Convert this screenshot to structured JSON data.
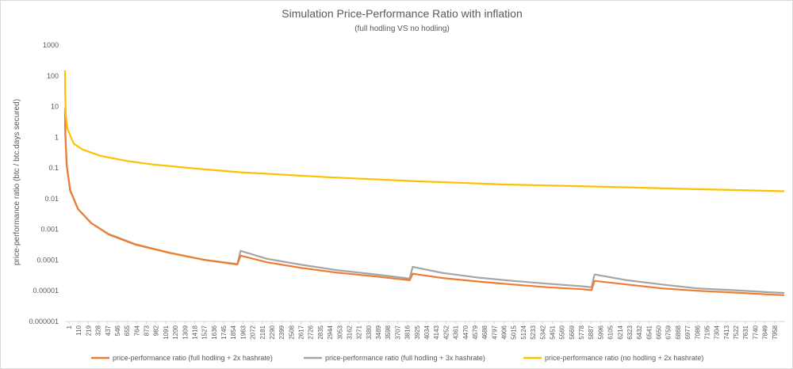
{
  "chart_data": {
    "type": "line",
    "title": "Simulation Price-Performance Ratio with inflation",
    "subtitle": "(full hodling VS no hodling)",
    "xlabel": "",
    "ylabel": "price-performance ratio (btc / btc.days secured)",
    "y_scale": "log",
    "ylim": [
      1e-06,
      1000
    ],
    "y_ticks": [
      "0.000001",
      "0.00001",
      "0.0001",
      "0.001",
      "0.01",
      "0.1",
      "1",
      "10",
      "100",
      "1000"
    ],
    "xlim": [
      1,
      8200
    ],
    "x_tick_labels": [
      "1",
      "110",
      "219",
      "328",
      "437",
      "546",
      "655",
      "764",
      "873",
      "982",
      "1091",
      "1200",
      "1309",
      "1418",
      "1527",
      "1636",
      "1745",
      "1854",
      "1963",
      "2072",
      "2181",
      "2290",
      "2399",
      "2508",
      "2617",
      "2726",
      "2835",
      "2944",
      "3053",
      "3162",
      "3271",
      "3380",
      "3489",
      "3598",
      "3707",
      "3816",
      "3925",
      "4034",
      "4143",
      "4252",
      "4361",
      "4470",
      "4579",
      "4688",
      "4797",
      "4906",
      "5015",
      "5124",
      "5233",
      "5342",
      "5451",
      "5560",
      "5669",
      "5778",
      "5887",
      "5996",
      "6105",
      "6214",
      "6323",
      "6432",
      "6541",
      "6650",
      "6759",
      "6868",
      "6977",
      "7086",
      "7195",
      "7304",
      "7413",
      "7522",
      "7631",
      "7740",
      "7849",
      "7958"
    ],
    "series": [
      {
        "name": "price-performance ratio (full hodling + 2x hashrate)",
        "color": "#ED7D31",
        "x": [
          1,
          5,
          20,
          60,
          150,
          300,
          500,
          800,
          1200,
          1600,
          1963,
          2000,
          2300,
          2700,
          3100,
          3500,
          3925,
          3960,
          4300,
          4700,
          5100,
          5500,
          5900,
          5996,
          6030,
          6400,
          6800,
          7200,
          7600,
          8000,
          8190
        ],
        "values": [
          6,
          1.2,
          0.12,
          0.018,
          0.0045,
          0.0016,
          0.00068,
          0.00032,
          0.00017,
          0.0001,
          7.2e-05,
          0.00014,
          8.5e-05,
          5.5e-05,
          3.9e-05,
          3e-05,
          2.2e-05,
          3.6e-05,
          2.6e-05,
          2e-05,
          1.6e-05,
          1.3e-05,
          1.12e-05,
          1.05e-05,
          2.1e-05,
          1.6e-05,
          1.2e-05,
          1e-05,
          8.8e-06,
          7.6e-06,
          7.2e-06
        ]
      },
      {
        "name": "price-performance ratio (full hodling + 3x hashrate)",
        "color": "#A5A5A5",
        "x": [
          1,
          5,
          20,
          60,
          150,
          300,
          500,
          800,
          1200,
          1600,
          1963,
          2000,
          2300,
          2700,
          3100,
          3500,
          3925,
          3960,
          4300,
          4700,
          5100,
          5500,
          5900,
          5996,
          6030,
          6400,
          6800,
          7200,
          7600,
          8000,
          8190
        ],
        "values": [
          9,
          1.4,
          0.13,
          0.019,
          0.0046,
          0.0016,
          0.0007,
          0.00033,
          0.00017,
          0.0001,
          7.4e-05,
          0.0002,
          0.00011,
          7e-05,
          4.7e-05,
          3.5e-05,
          2.5e-05,
          6e-05,
          3.8e-05,
          2.7e-05,
          2.1e-05,
          1.7e-05,
          1.4e-05,
          1.3e-05,
          3.4e-05,
          2.2e-05,
          1.6e-05,
          1.2e-05,
          1.05e-05,
          9e-06,
          8.5e-06
        ]
      },
      {
        "name": "price-performance ratio (no hodling + 2x hashrate)",
        "color": "#FFC000",
        "x": [
          1,
          3,
          10,
          30,
          100,
          200,
          400,
          700,
          1000,
          1500,
          2000,
          2500,
          3000,
          3500,
          4000,
          4500,
          5000,
          5500,
          6000,
          6500,
          7000,
          7500,
          8000,
          8190
        ],
        "values": [
          150,
          30,
          5,
          1.8,
          0.62,
          0.4,
          0.25,
          0.17,
          0.13,
          0.095,
          0.072,
          0.06,
          0.05,
          0.043,
          0.037,
          0.033,
          0.029,
          0.027,
          0.025,
          0.023,
          0.021,
          0.0195,
          0.018,
          0.0175
        ]
      }
    ],
    "legend_position": "bottom",
    "gridlines": false
  }
}
